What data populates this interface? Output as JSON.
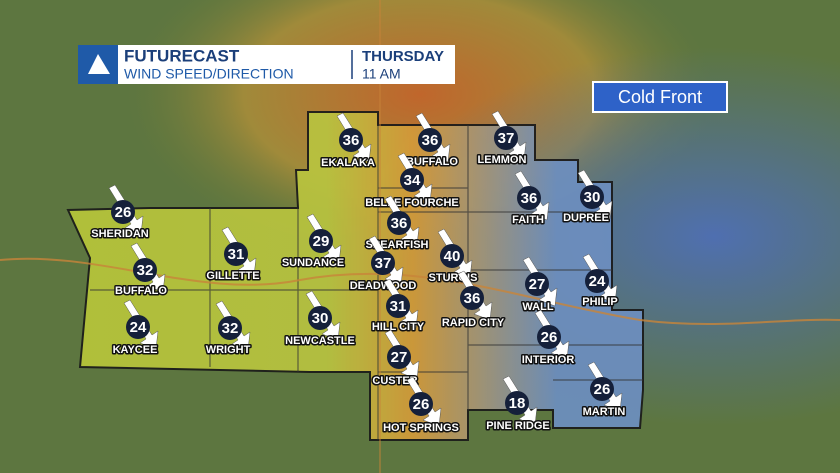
{
  "header": {
    "title": "FUTURECAST",
    "subtitle": "WIND SPEED/DIRECTION",
    "day": "THURSDAY",
    "time": "11 AM"
  },
  "front_label": "Cold Front",
  "stations": [
    {
      "name": "EKALAKA",
      "speed": 36
    },
    {
      "name": "BUFFALO",
      "speed": 36
    },
    {
      "name": "LEMMON",
      "speed": 37
    },
    {
      "name": "BELLE FOURCHE",
      "speed": 34
    },
    {
      "name": "FAITH",
      "speed": 36
    },
    {
      "name": "DUPREE",
      "speed": 30
    },
    {
      "name": "SHERIDAN",
      "speed": 26
    },
    {
      "name": "GILLETTE",
      "speed": 31
    },
    {
      "name": "SUNDANCE",
      "speed": 29
    },
    {
      "name": "SPEARFISH",
      "speed": 36
    },
    {
      "name": "STURGIS",
      "speed": 40
    },
    {
      "name": "DEADWOOD",
      "speed": 37
    },
    {
      "name": "WALL",
      "speed": 27
    },
    {
      "name": "PHILIP",
      "speed": 24
    },
    {
      "name": "BUFFALO",
      "speed": 32
    },
    {
      "name": "RAPID CITY",
      "speed": 36
    },
    {
      "name": "HILL CITY",
      "speed": 31
    },
    {
      "name": "KAYCEE",
      "speed": 24
    },
    {
      "name": "WRIGHT",
      "speed": 32
    },
    {
      "name": "NEWCASTLE",
      "speed": 30
    },
    {
      "name": "INTERIOR",
      "speed": 26
    },
    {
      "name": "CUSTER",
      "speed": 27
    },
    {
      "name": "MARTIN",
      "speed": 26
    },
    {
      "name": "HOT SPRINGS",
      "speed": 26
    },
    {
      "name": "PINE RIDGE",
      "speed": 18
    }
  ]
}
